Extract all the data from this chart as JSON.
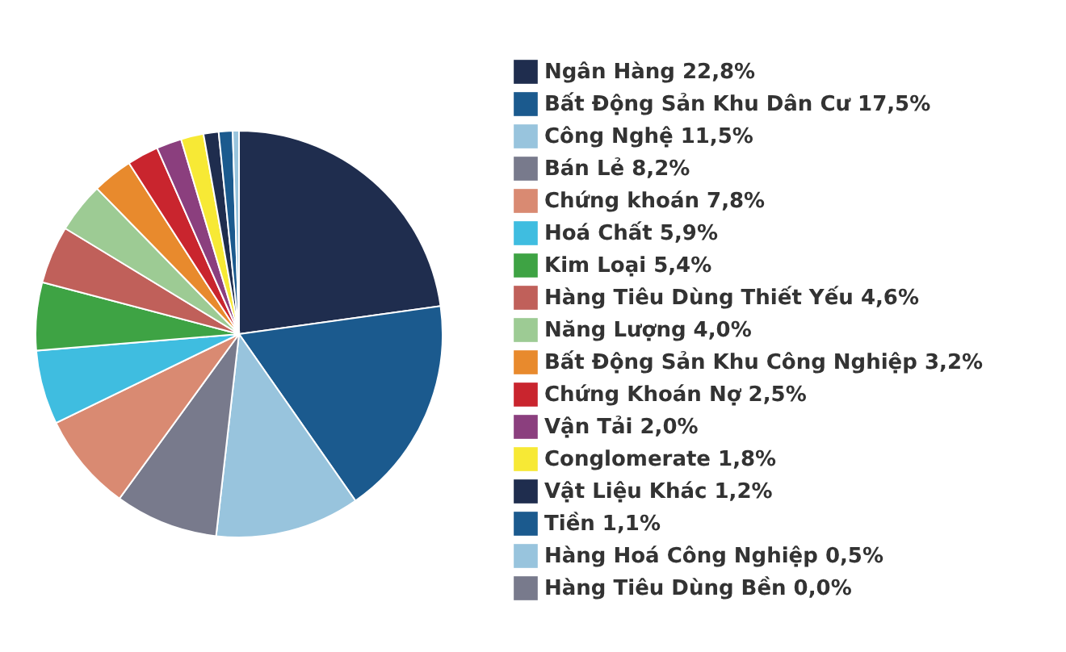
{
  "chart_data": {
    "type": "pie",
    "legend": "right",
    "categories": [
      "Ngân Hàng",
      "Bất Động Sản Khu Dân Cư",
      "Công Nghệ",
      "Bán Lẻ",
      "Chứng khoán",
      "Hoá Chất",
      "Kim Loại",
      "Hàng Tiêu Dùng Thiết Yếu",
      "Năng Lượng",
      "Bất Động Sản Khu Công Nghiệp",
      "Chứng Khoán Nợ",
      "Vận Tải",
      "Conglomerate",
      "Vật Liệu Khác",
      "Tiền",
      "Hàng Hoá Công Nghiệp",
      "Hàng Tiêu Dùng Bền"
    ],
    "values": [
      22.8,
      17.5,
      11.5,
      8.2,
      7.8,
      5.9,
      5.4,
      4.6,
      4.0,
      3.2,
      2.5,
      2.0,
      1.8,
      1.2,
      1.1,
      0.5,
      0.0
    ],
    "value_labels": [
      "22,8%",
      "17,5%",
      "11,5%",
      "8,2%",
      "7,8%",
      "5,9%",
      "5,4%",
      "4,6%",
      "4,0%",
      "3,2%",
      "2,5%",
      "2,0%",
      "1,8%",
      "1,2%",
      "1,1%",
      "0,5%",
      "0,0%"
    ],
    "colors": [
      "#1f2d4e",
      "#1b5a8e",
      "#98c4dd",
      "#787a8c",
      "#d98a72",
      "#3fbde0",
      "#3ea344",
      "#c0605a",
      "#9dcb94",
      "#e88a2d",
      "#c9252e",
      "#8b3f7e",
      "#f7e935",
      "#1f2d4e",
      "#1b5a8e",
      "#98c4dd",
      "#787a8c"
    ]
  }
}
